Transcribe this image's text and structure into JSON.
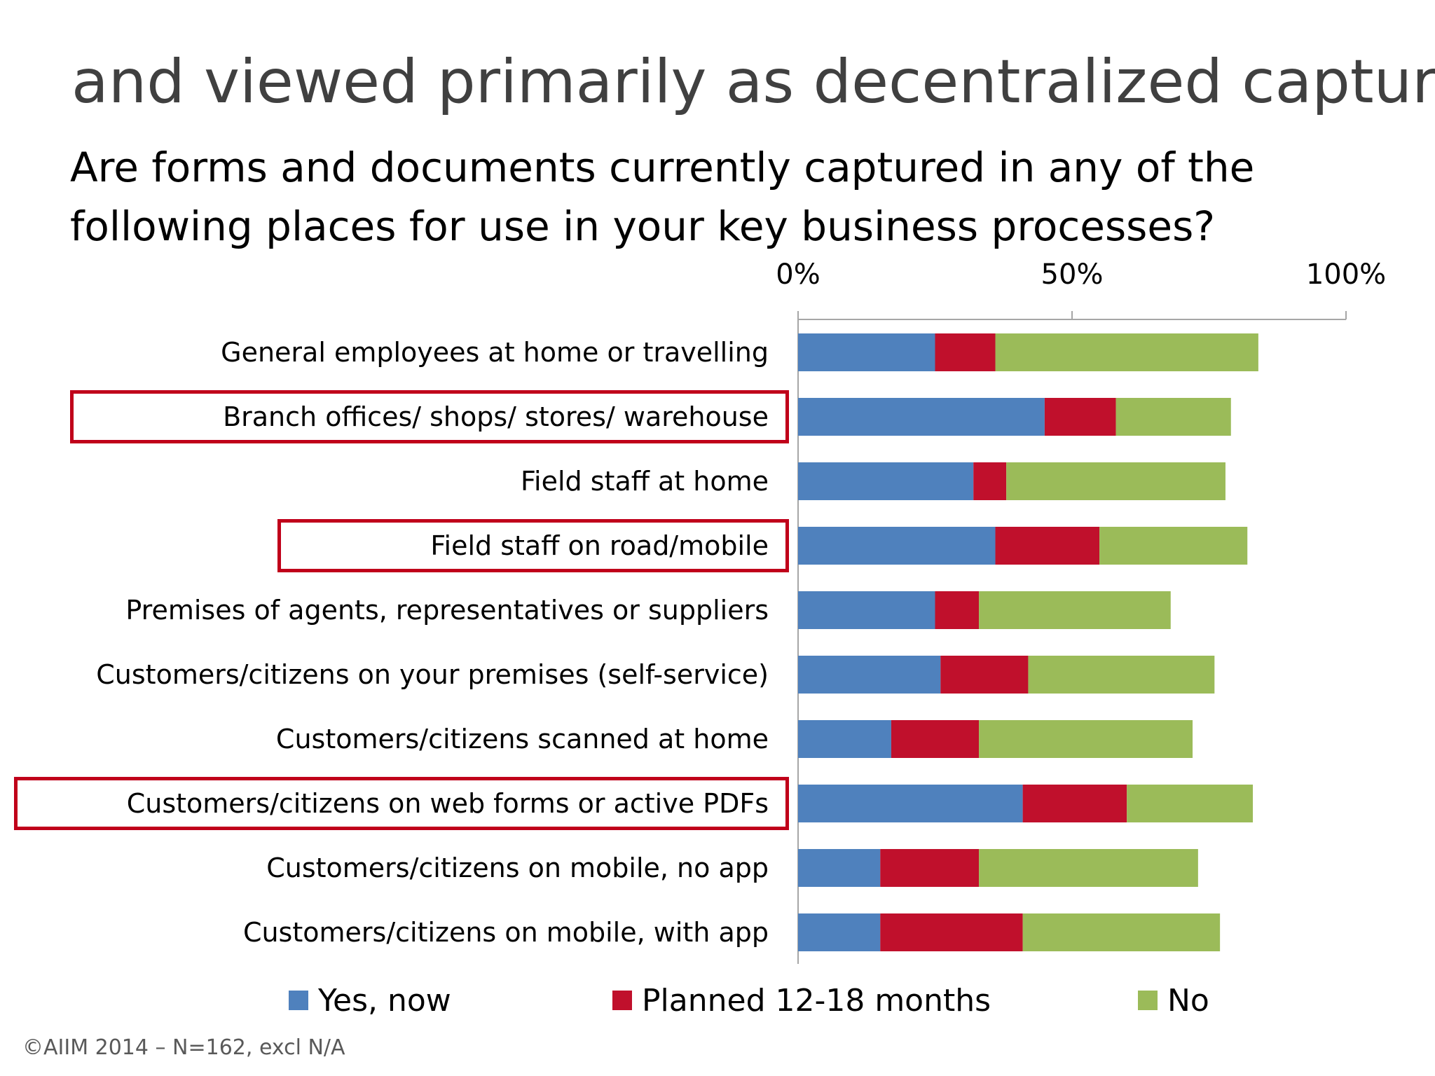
{
  "slide": {
    "title": "and viewed primarily as decentralized capture.",
    "question_line1": "Are forms and documents currently captured in any of the",
    "question_line2": "following places for use in your key business processes?",
    "copyright": "©AIIM 2014 – N=162, excl N/A"
  },
  "chart_data": {
    "type": "bar",
    "orientation": "horizontal",
    "stacked": true,
    "title": "",
    "xlabel": "",
    "ylabel": "",
    "xlim": [
      0,
      100
    ],
    "x_axis_position": "top",
    "ticks": [
      "0%",
      "50%",
      "100%"
    ],
    "tick_values": [
      0,
      50,
      100
    ],
    "grid": false,
    "legend_position": "bottom",
    "categories": [
      "General employees at home or travelling",
      "Branch offices/ shops/ stores/ warehouse",
      "Field staff at home",
      "Field staff on road/mobile",
      "Premises of agents, representatives or suppliers",
      "Customers/citizens on your premises (self-service)",
      "Customers/citizens scanned at home",
      "Customers/citizens on web forms or active PDFs",
      "Customers/citizens on mobile, no app",
      "Customers/citizens on mobile, with app"
    ],
    "series": [
      {
        "name": "Yes, now",
        "color": "#4f81bd",
        "values": [
          25,
          45,
          32,
          36,
          25,
          26,
          17,
          41,
          15,
          15
        ]
      },
      {
        "name": "Planned 12-18 months",
        "color": "#c0102c",
        "values": [
          11,
          13,
          6,
          19,
          8,
          16,
          16,
          19,
          18,
          26
        ]
      },
      {
        "name": "No",
        "color": "#9bbb59",
        "values": [
          48,
          21,
          40,
          27,
          35,
          34,
          39,
          23,
          40,
          36
        ]
      }
    ],
    "highlighted_categories": [
      "Branch offices/ shops/ stores/ warehouse",
      "Field staff on road/mobile",
      "Customers/citizens on web forms or active PDFs"
    ],
    "highlight_color": "#c0001a"
  }
}
